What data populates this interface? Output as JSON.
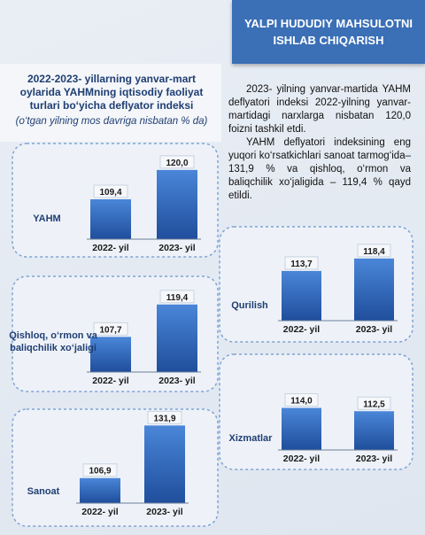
{
  "header": {
    "title": "YALPI HUDUDIY MAHSULOTNI ISHLAB CHIQARISH"
  },
  "intro": {
    "title": "2022-2023- yillarning yanvar-mart oylarida YAHMning iqtisodiy faoliyat turlari bo‘yicha deflyator indeksi",
    "subtitle": "(o‘tgan yilning mos davriga nisbatan % da)"
  },
  "text": {
    "paragraphs": [
      "2023- yilning yanvar-martida YAHM deflyatori indeksi 2022-yilning yanvar-martidagi narxlarga nisbatan 120,0 foizni tashkil etdi.",
      "YAHM deflyatori indeksining eng yuqori ko‘rsatkichlari sanoat tarmog‘ida– 131,9 % va qishloq, o‘rmon va baliqchilik xo‘jaligida – 119,4 % qayd etildi."
    ]
  },
  "chart_data": [
    {
      "type": "bar",
      "title": "YAHM",
      "categories": [
        "2022- yil",
        "2023- yil"
      ],
      "values": [
        109.4,
        120.0
      ],
      "value_labels": [
        "109,4",
        "120,0"
      ],
      "color": "#2f62b8",
      "ylim": [
        95,
        135
      ]
    },
    {
      "type": "bar",
      "title": "Qishloq, o‘rmon va baliqchilik xo‘jaligi",
      "categories": [
        "2022- yil",
        "2023- yil"
      ],
      "values": [
        107.7,
        119.4
      ],
      "value_labels": [
        "107,7",
        "119,4"
      ],
      "color": "#2f62b8",
      "ylim": [
        95,
        135
      ]
    },
    {
      "type": "bar",
      "title": "Sanoat",
      "categories": [
        "2022- yil",
        "2023- yil"
      ],
      "values": [
        106.9,
        131.9
      ],
      "value_labels": [
        "106,9",
        "131,9"
      ],
      "color": "#2f62b8",
      "ylim": [
        95,
        135
      ]
    },
    {
      "type": "bar",
      "title": "Qurilish",
      "categories": [
        "2022- yil",
        "2023- yil"
      ],
      "values": [
        113.7,
        118.4
      ],
      "value_labels": [
        "113,7",
        "118,4"
      ],
      "color": "#2f62b8",
      "ylim": [
        95,
        135
      ]
    },
    {
      "type": "bar",
      "title": "Xizmatlar",
      "categories": [
        "2022- yil",
        "2023- yil"
      ],
      "values": [
        114.0,
        112.5
      ],
      "value_labels": [
        "114,0",
        "112,5"
      ],
      "color": "#2f62b8",
      "ylim": [
        95,
        135
      ]
    }
  ]
}
